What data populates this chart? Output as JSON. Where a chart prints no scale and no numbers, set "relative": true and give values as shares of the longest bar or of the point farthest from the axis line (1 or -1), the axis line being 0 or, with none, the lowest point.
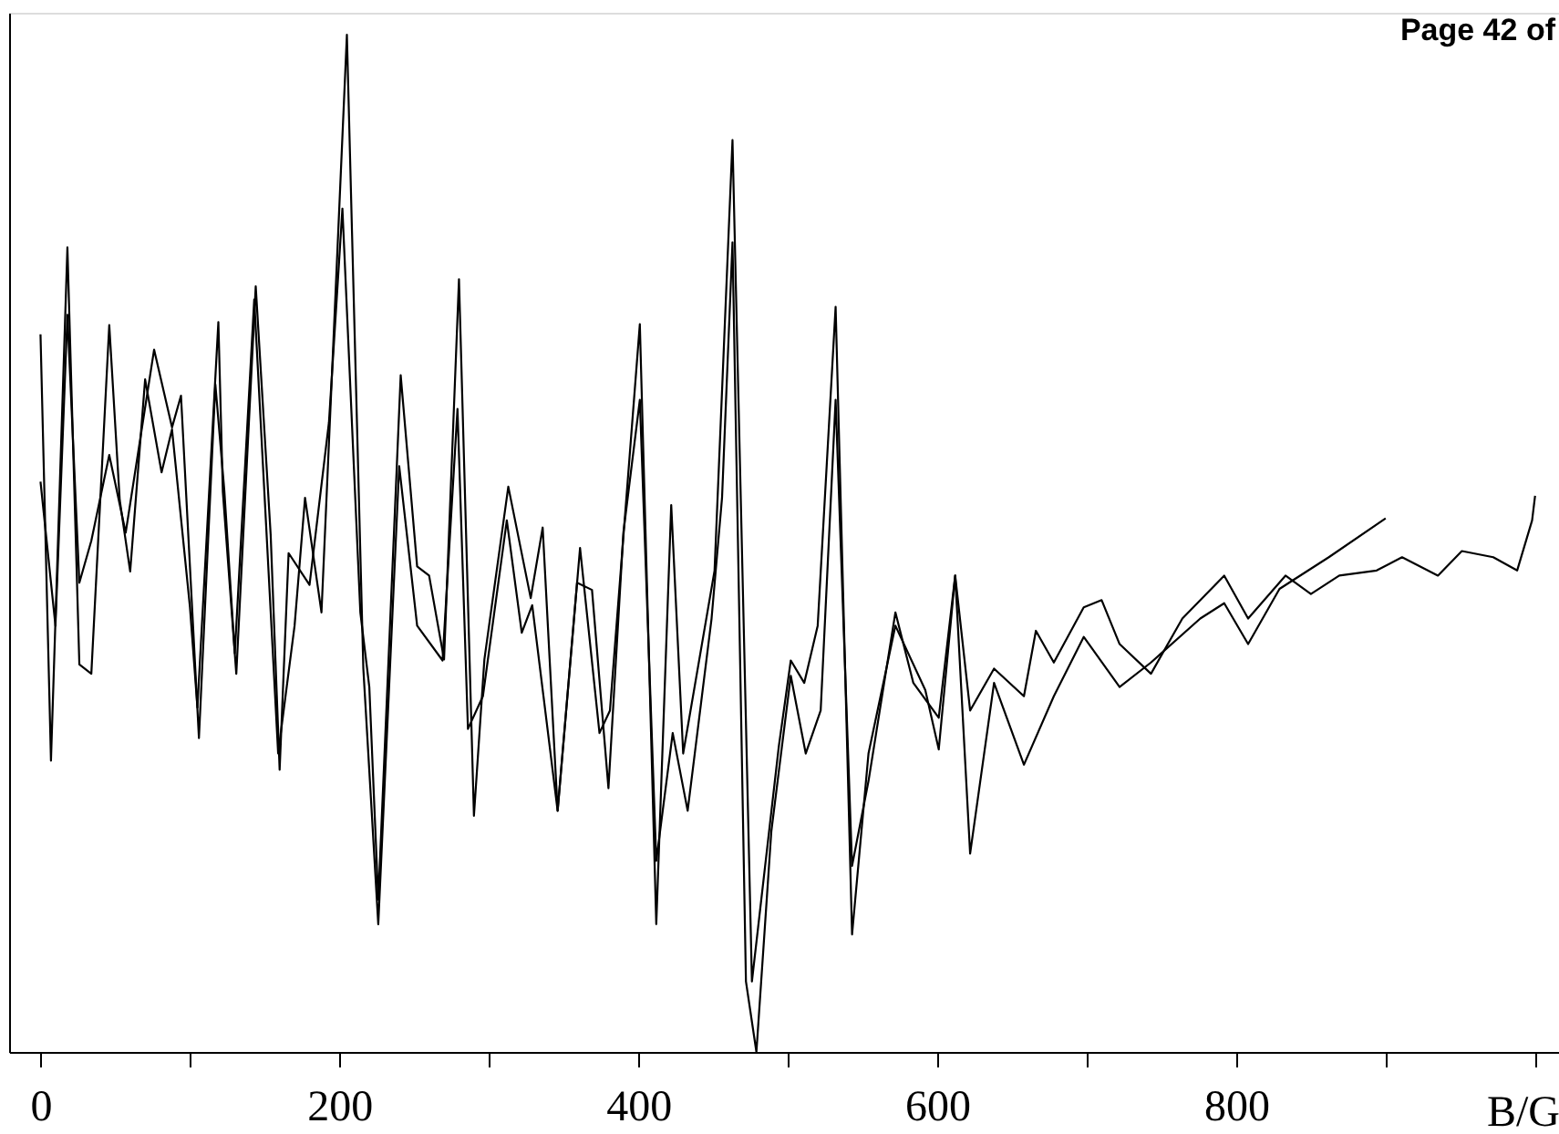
{
  "chart_data": {
    "type": "line",
    "relative": true,
    "xlabel": "B/G",
    "tick_labels": "x",
    "annotations": [
      "Page 42 of"
    ],
    "xlim": [
      -21,
      1016
    ],
    "xticks": [
      0,
      {
        "value": 100,
        "label": null
      },
      200,
      {
        "value": 300,
        "label": null
      },
      400,
      {
        "value": 500,
        "label": null
      },
      600,
      {
        "value": 700,
        "label": null
      },
      800,
      {
        "value": 900,
        "label": null
      },
      {
        "value": 1000,
        "label": null
      }
    ],
    "series": [
      {
        "color": "#000000",
        "x": [
          0,
          7,
          18,
          26,
          34,
          46,
          53,
          60,
          70,
          81,
          88,
          100,
          105,
          119,
          122,
          131,
          144,
          154,
          160,
          166,
          180,
          193,
          202,
          214,
          220,
          226,
          241,
          252,
          260,
          270,
          280,
          290,
          297,
          313,
          328,
          336,
          346,
          359,
          369,
          380,
          390,
          401,
          412,
          423,
          433,
          449,
          456,
          463,
          472,
          479,
          489,
          502,
          512,
          522,
          532,
          543,
          554,
          572,
          584,
          601,
          612,
          622,
          638,
          658,
          666,
          678,
          698,
          710,
          722,
          743,
          764,
          792,
          808,
          833,
          850,
          869,
          894,
          911,
          935,
          951,
          972,
          988,
          998,
          1000
        ],
        "values": [
          0.707,
          0.29,
          0.792,
          0.384,
          0.375,
          0.716,
          0.545,
          0.475,
          0.663,
          0.572,
          0.614,
          0.44,
          0.342,
          0.719,
          0.553,
          0.375,
          0.754,
          0.511,
          0.281,
          0.493,
          0.462,
          0.621,
          0.83,
          0.435,
          0.362,
          0.154,
          0.667,
          0.48,
          0.471,
          0.389,
          0.761,
          0.236,
          0.389,
          0.558,
          0.449,
          0.518,
          0.241,
          0.464,
          0.457,
          0.263,
          0.513,
          0.643,
          0.192,
          0.317,
          0.241,
          0.429,
          0.547,
          0.797,
          0.074,
          0.005,
          0.221,
          0.373,
          0.297,
          0.339,
          0.643,
          0.187,
          0.27,
          0.435,
          0.366,
          0.332,
          0.471,
          0.339,
          0.38,
          0.353,
          0.417,
          0.386,
          0.44,
          0.447,
          0.404,
          0.375,
          0.429,
          0.471,
          0.429,
          0.471,
          0.453,
          0.471,
          0.476,
          0.489,
          0.471,
          0.495,
          0.489,
          0.476,
          0.525,
          0.549
        ]
      },
      {
        "color": "#000000",
        "x": [
          0,
          10,
          18,
          26,
          34,
          46,
          57,
          76,
          88,
          94,
          106,
          117,
          123,
          130,
          143,
          159,
          170,
          177,
          188,
          205,
          216,
          226,
          240,
          252,
          269,
          279,
          286,
          296,
          312,
          322,
          329,
          346,
          361,
          374,
          381,
          401,
          412,
          422,
          430,
          451,
          463,
          476,
          494,
          502,
          511,
          520,
          532,
          543,
          554,
          572,
          592,
          601,
          612,
          622,
          638,
          658,
          678,
          698,
          722,
          743,
          776,
          792,
          808,
          829,
          862,
          900
        ],
        "values": [
          0.563,
          0.422,
          0.726,
          0.464,
          0.505,
          0.589,
          0.513,
          0.692,
          0.616,
          0.647,
          0.312,
          0.658,
          0.554,
          0.395,
          0.741,
          0.297,
          0.422,
          0.547,
          0.435,
          1,
          0.38,
          0.13,
          0.578,
          0.422,
          0.388,
          0.634,
          0.321,
          0.353,
          0.525,
          0.415,
          0.442,
          0.241,
          0.498,
          0.317,
          0.339,
          0.717,
          0.13,
          0.54,
          0.297,
          0.476,
          0.897,
          0.074,
          0.304,
          0.388,
          0.366,
          0.422,
          0.734,
          0.12,
          0.297,
          0.422,
          0.359,
          0.301,
          0.471,
          0.199,
          0.366,
          0.286,
          0.353,
          0.411,
          0.362,
          0.386,
          0.429,
          0.444,
          0.404,
          0.458,
          0.489,
          0.527
        ]
      }
    ]
  }
}
